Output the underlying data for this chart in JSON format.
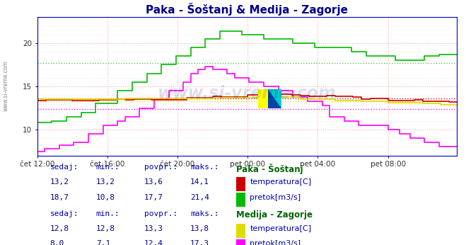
{
  "title": "Paka - Šoštanj & Medija - Zagorje",
  "title_color": "#00008B",
  "bg_color": "#ffffff",
  "plot_bg_color": "#ffffff",
  "x_labels": [
    "čet 12:00",
    "čet 16:00",
    "čet 20:00",
    "pet 00:00",
    "pet 04:00",
    "pet 08:00"
  ],
  "x_ticks": [
    0,
    48,
    96,
    144,
    192,
    240
  ],
  "total_points": 288,
  "y_min": 7,
  "y_max": 23,
  "y_ticks": [
    10,
    15,
    20
  ],
  "watermark": "www.si-vreme.com",
  "series": {
    "paka_temp": {
      "color": "#cc0000",
      "avg": 13.6,
      "min": 13.2,
      "max": 14.1,
      "last": 13.2,
      "label": "temperatura[C]",
      "station": "Paka - Šoštanj"
    },
    "paka_flow": {
      "color": "#00bb00",
      "avg": 17.7,
      "min": 10.8,
      "max": 21.4,
      "last": 18.7,
      "label": "pretok[m3/s]",
      "station": "Paka - Šoštanj"
    },
    "medija_temp": {
      "color": "#dddd00",
      "avg": 13.3,
      "min": 12.8,
      "max": 13.8,
      "last": 12.8,
      "label": "temperatura[C]",
      "station": "Medija - Zagorje"
    },
    "medija_flow": {
      "color": "#ff00ff",
      "avg": 12.4,
      "min": 7.1,
      "max": 17.3,
      "last": 8.0,
      "label": "pretok[m3/s]",
      "station": "Medija - Zagorje"
    }
  },
  "table": {
    "paka": {
      "label": "Paka - Šoštanj",
      "temp": {
        "sedaj": "13,2",
        "min": "13,2",
        "povpr": "13,6",
        "maks": "14,1"
      },
      "flow": {
        "sedaj": "18,7",
        "min": "10,8",
        "povpr": "17,7",
        "maks": "21,4"
      }
    },
    "medija": {
      "label": "Medija - Zagorje",
      "temp": {
        "sedaj": "12,8",
        "min": "12,8",
        "povpr": "13,3",
        "maks": "13,8"
      },
      "flow": {
        "sedaj": "8,0",
        "min": "7,1",
        "povpr": "12,4",
        "maks": "17,3"
      }
    }
  }
}
